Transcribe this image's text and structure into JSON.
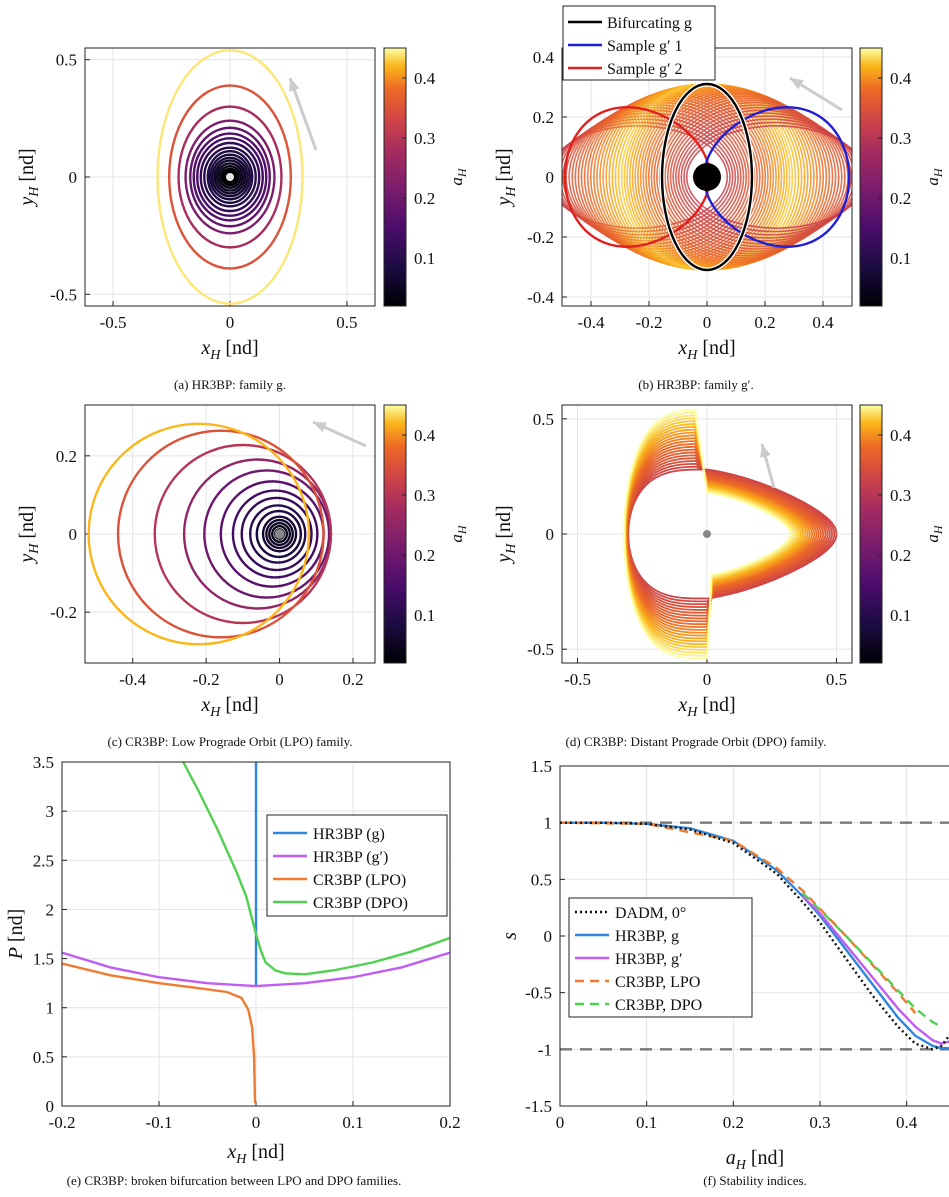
{
  "colors": {
    "hr3bp_g": "#2e86de",
    "hr3bp_gp": "#bf5cf2",
    "cr3bp_lpo": "#f07a2f",
    "cr3bp_dpo": "#4fd14f",
    "dadm": "#111111",
    "grid": "#e4e4e4",
    "colormap": "inferno"
  },
  "chart_data": [
    {
      "id": "a",
      "type": "line",
      "caption": "(a) HR3BP: family g.",
      "xlabel": "x_H [nd]",
      "ylabel": "y_H [nd]",
      "xlim": [
        -0.62,
        0.62
      ],
      "ylim": [
        -0.55,
        0.55
      ],
      "xticks": [
        "-0.5",
        "0",
        "0.5"
      ],
      "yticks": [
        "-0.5",
        "0",
        "0.5"
      ],
      "colorbar": {
        "label": "a_H",
        "range": [
          0.02,
          0.45
        ],
        "ticks": [
          "0.1",
          "0.2",
          "0.3",
          "0.4"
        ]
      },
      "grid": true,
      "series": {
        "kind": "ellipses",
        "amplitudes_x": [
          0.035,
          0.045,
          0.055,
          0.065,
          0.075,
          0.085,
          0.095,
          0.11,
          0.125,
          0.14,
          0.155,
          0.17,
          0.19,
          0.22,
          0.26,
          0.31
        ],
        "amplitudes_y": [
          0.035,
          0.046,
          0.058,
          0.07,
          0.082,
          0.095,
          0.11,
          0.125,
          0.145,
          0.165,
          0.185,
          0.21,
          0.24,
          0.3,
          0.39,
          0.54
        ],
        "a_H": [
          0.03,
          0.04,
          0.05,
          0.06,
          0.07,
          0.08,
          0.09,
          0.1,
          0.12,
          0.14,
          0.16,
          0.18,
          0.22,
          0.28,
          0.35,
          0.44
        ]
      }
    },
    {
      "id": "b",
      "type": "line",
      "caption": "(b) HR3BP: family g′.",
      "xlabel": "x_H [nd]",
      "ylabel": "y_H [nd]",
      "xlim": [
        -0.5,
        0.5
      ],
      "ylim": [
        -0.43,
        0.43
      ],
      "xticks": [
        "-0.4",
        "-0.2",
        "0",
        "0.2",
        "0.4"
      ],
      "yticks": [
        "-0.4",
        "-0.2",
        "0",
        "0.2",
        "0.4"
      ],
      "colorbar": {
        "label": "a_H",
        "range": [
          0.02,
          0.45
        ],
        "ticks": [
          "0.1",
          "0.2",
          "0.3",
          "0.4"
        ]
      },
      "grid": true,
      "legend": [
        "Bifurcating g",
        "Sample g′ 1",
        "Sample g′ 2"
      ],
      "legend_colors": [
        "#000000",
        "#1f1fd6",
        "#e01f1f"
      ],
      "series": {
        "kind": "shifted-circles",
        "radius": 0.31,
        "offsets": [
          -0.24,
          -0.2,
          -0.16,
          -0.12,
          -0.08,
          -0.04,
          0.0,
          0.04,
          0.08,
          0.12,
          0.16,
          0.2,
          0.24
        ]
      }
    },
    {
      "id": "c",
      "type": "line",
      "caption": "(c) CR3BP: Low Prograde Orbit (LPO) family.",
      "xlabel": "x_H [nd]",
      "ylabel": "y_H [nd]",
      "xlim": [
        -0.53,
        0.26
      ],
      "ylim": [
        -0.33,
        0.33
      ],
      "xticks": [
        "-0.4",
        "-0.2",
        "0",
        "0.2"
      ],
      "yticks": [
        "-0.2",
        "0",
        "0.2"
      ],
      "colorbar": {
        "label": "a_H",
        "range": [
          0.02,
          0.45
        ],
        "ticks": [
          "0.1",
          "0.2",
          "0.3",
          "0.4"
        ]
      },
      "grid": true,
      "series": {
        "kind": "circles",
        "centers_x": [
          0,
          0,
          0,
          0,
          0,
          -0.002,
          -0.005,
          -0.008,
          -0.012,
          -0.02,
          -0.035,
          -0.06,
          -0.1,
          -0.16,
          -0.22
        ],
        "radii": [
          0.012,
          0.02,
          0.028,
          0.036,
          0.045,
          0.06,
          0.075,
          0.095,
          0.115,
          0.14,
          0.17,
          0.2,
          0.24,
          0.28,
          0.3
        ],
        "a_H": [
          0.03,
          0.04,
          0.05,
          0.06,
          0.07,
          0.08,
          0.1,
          0.12,
          0.14,
          0.17,
          0.2,
          0.25,
          0.3,
          0.35,
          0.42
        ]
      }
    },
    {
      "id": "d",
      "type": "line",
      "caption": "(d) CR3BP: Distant Prograde Orbit (DPO) family.",
      "xlabel": "x_H [nd]",
      "ylabel": "y_H [nd]",
      "xlim": [
        -0.56,
        0.56
      ],
      "ylim": [
        -0.56,
        0.56
      ],
      "xticks": [
        "-0.5",
        "0",
        "0.5"
      ],
      "yticks": [
        "-0.5",
        "0",
        "0.5"
      ],
      "colorbar": {
        "label": "a_H",
        "range": [
          0.02,
          0.45
        ],
        "ticks": [
          "0.1",
          "0.2",
          "0.3",
          "0.4"
        ]
      },
      "grid": true,
      "series": {
        "kind": "teardrops",
        "count": 22,
        "a_H_range": [
          0.3,
          0.45
        ]
      }
    },
    {
      "id": "e",
      "type": "line",
      "caption": "(e) CR3BP: broken bifurcation between LPO and DPO families.",
      "xlabel": "x_H [nd]",
      "ylabel": "P [nd]",
      "xlim": [
        -0.2,
        0.2
      ],
      "ylim": [
        0,
        3.5
      ],
      "xticks": [
        "-0.2",
        "-0.1",
        "0",
        "0.1",
        "0.2"
      ],
      "yticks": [
        "0",
        "0.5",
        "1",
        "1.5",
        "2",
        "2.5",
        "3",
        "3.5"
      ],
      "grid": true,
      "legend": [
        "HR3BP (g)",
        "HR3BP (g′)",
        "CR3BP (LPO)",
        "CR3BP (DPO)"
      ],
      "series": [
        {
          "name": "HR3BP (g)",
          "x": [
            0,
            0
          ],
          "y": [
            1.22,
            3.5
          ]
        },
        {
          "name": "HR3BP (g′)",
          "x": [
            -0.2,
            -0.15,
            -0.1,
            -0.05,
            0,
            0.05,
            0.1,
            0.15,
            0.2
          ],
          "y": [
            1.56,
            1.41,
            1.31,
            1.25,
            1.22,
            1.25,
            1.31,
            1.41,
            1.56
          ]
        },
        {
          "name": "CR3BP (LPO)",
          "x": [
            -0.2,
            -0.15,
            -0.1,
            -0.06,
            -0.03,
            -0.015,
            -0.008,
            -0.004,
            -0.002,
            -0.001
          ],
          "y": [
            1.45,
            1.33,
            1.25,
            1.2,
            1.16,
            1.1,
            0.98,
            0.8,
            0.5,
            0.03
          ]
        },
        {
          "name": "CR3BP (DPO)",
          "x": [
            -0.075,
            -0.06,
            -0.04,
            -0.02,
            -0.01,
            0,
            0.005,
            0.01,
            0.02,
            0.03,
            0.05,
            0.08,
            0.12,
            0.16,
            0.2
          ],
          "y": [
            3.5,
            3.22,
            2.82,
            2.38,
            2.13,
            1.75,
            1.58,
            1.46,
            1.38,
            1.35,
            1.34,
            1.38,
            1.46,
            1.57,
            1.71
          ]
        }
      ]
    },
    {
      "id": "f",
      "type": "line",
      "caption": "(f) Stability indices.",
      "xlabel": "a_H [nd]",
      "ylabel": "s",
      "xlim": [
        0,
        0.45
      ],
      "ylim": [
        -1.5,
        1.5
      ],
      "xticks": [
        "0",
        "0.1",
        "0.2",
        "0.3",
        "0.4"
      ],
      "yticks": [
        "-1.5",
        "-1",
        "-0.5",
        "0",
        "0.5",
        "1",
        "1.5"
      ],
      "grid": true,
      "reference_lines": [
        1,
        -1
      ],
      "legend": [
        "DADM, 0°",
        "HR3BP, g",
        "HR3BP, g′",
        "CR3BP, LPO",
        "CR3BP, DPO"
      ],
      "series": [
        {
          "name": "DADM, 0°",
          "x": [
            0,
            0.05,
            0.1,
            0.15,
            0.2,
            0.25,
            0.28,
            0.3,
            0.33,
            0.36,
            0.39,
            0.41,
            0.43,
            0.44,
            0.45
          ],
          "y": [
            1,
            1,
            0.99,
            0.94,
            0.82,
            0.55,
            0.3,
            0.12,
            -0.2,
            -0.52,
            -0.8,
            -0.95,
            -1.0,
            -0.97,
            -0.87
          ]
        },
        {
          "name": "HR3BP, g",
          "x": [
            0,
            0.05,
            0.1,
            0.15,
            0.2,
            0.25,
            0.28,
            0.3,
            0.33,
            0.36,
            0.39,
            0.41,
            0.43,
            0.44,
            0.45
          ],
          "y": [
            1,
            1,
            0.99,
            0.95,
            0.84,
            0.58,
            0.35,
            0.18,
            -0.12,
            -0.42,
            -0.72,
            -0.88,
            -0.97,
            -0.99,
            -0.99
          ]
        },
        {
          "name": "HR3BP, g′",
          "x": [
            0.28,
            0.3,
            0.33,
            0.36,
            0.39,
            0.41,
            0.43,
            0.44,
            0.45
          ],
          "y": [
            0.35,
            0.2,
            -0.08,
            -0.36,
            -0.64,
            -0.8,
            -0.92,
            -0.95,
            -0.93
          ]
        },
        {
          "name": "CR3BP, LPO",
          "x": [
            0,
            0.1,
            0.2,
            0.25,
            0.28,
            0.3,
            0.33,
            0.36,
            0.39,
            0.41
          ],
          "y": [
            1,
            0.99,
            0.84,
            0.6,
            0.4,
            0.24,
            0.0,
            -0.25,
            -0.5,
            -0.68
          ]
        },
        {
          "name": "CR3BP, DPO",
          "x": [
            0.28,
            0.3,
            0.33,
            0.36,
            0.39,
            0.41,
            0.43,
            0.44
          ],
          "y": [
            0.38,
            0.23,
            0.0,
            -0.24,
            -0.48,
            -0.64,
            -0.76,
            -0.8
          ]
        }
      ]
    }
  ]
}
